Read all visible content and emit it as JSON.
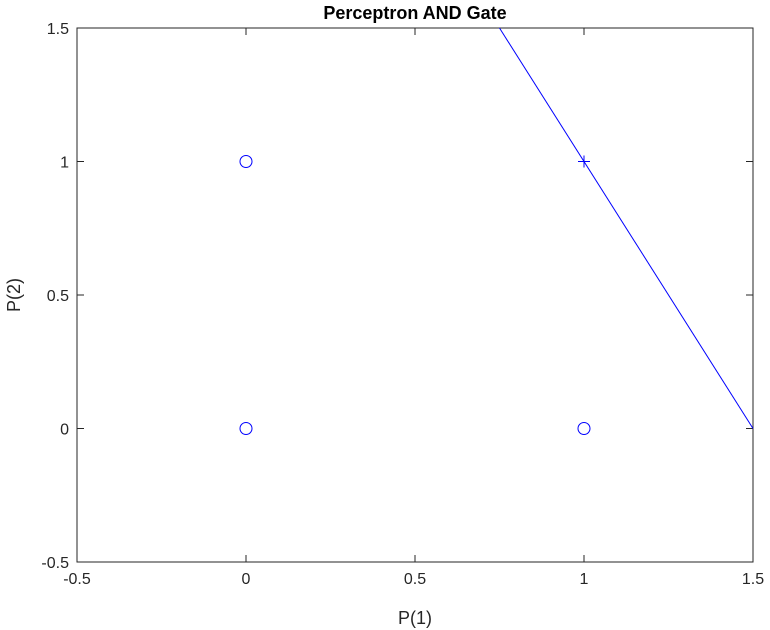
{
  "chart_data": {
    "type": "scatter",
    "title": "Perceptron AND Gate",
    "xlabel": "P(1)",
    "ylabel": "P(2)",
    "xlim": [
      -0.5,
      1.5
    ],
    "ylim": [
      -0.5,
      1.5
    ],
    "xticks": [
      -0.5,
      0,
      0.5,
      1,
      1.5
    ],
    "yticks": [
      -0.5,
      0,
      0.5,
      1,
      1.5
    ],
    "xtick_labels": [
      "-0.5",
      "0",
      "0.5",
      "1",
      "1.5"
    ],
    "ytick_labels": [
      "-0.5",
      "0",
      "0.5",
      "1",
      "1.5"
    ],
    "grid": false,
    "series": [
      {
        "marker": "circle",
        "x": [
          0,
          0,
          1
        ],
        "y": [
          0,
          1,
          0
        ]
      },
      {
        "marker": "plus",
        "x": [
          1
        ],
        "y": [
          1
        ]
      }
    ],
    "decision_boundary": {
      "x": [
        0.75,
        1.5
      ],
      "y": [
        1.5,
        0
      ]
    },
    "colors": {
      "markers": "#0000ff",
      "line": "#0000ff",
      "axes": "#262626"
    }
  }
}
